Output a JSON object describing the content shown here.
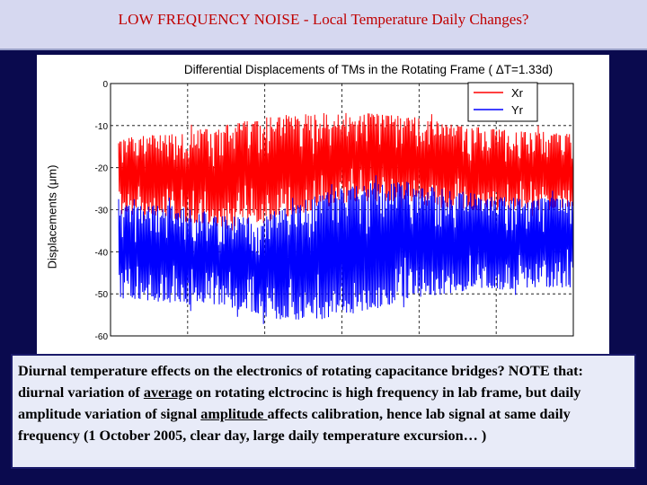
{
  "slide_title": {
    "prefix": "LOW  FREQUENCY  NOISE",
    "separator": " - ",
    "rest": "Local Temperature Daily Changes?"
  },
  "chart_data": {
    "type": "line",
    "title": "Differential Displacements of TMs in the Rotating Frame ( ΔT=1.33d)",
    "xlabel": "",
    "ylabel": "Displacements (μm)",
    "ylim": [
      -60,
      0
    ],
    "yticks": [
      "0",
      "-10",
      "-20",
      "-30",
      "-40",
      "-50",
      "-60"
    ],
    "grid": true,
    "legend_position": "top-right",
    "series": [
      {
        "name": "Xr",
        "color": "#ff0000",
        "envelope": {
          "t": [
            0,
            0.05,
            0.1,
            0.15,
            0.2,
            0.25,
            0.3,
            0.35,
            0.4,
            0.45,
            0.5,
            0.55,
            0.6,
            0.65,
            0.7,
            0.75,
            0.8,
            0.85,
            0.9,
            0.95,
            1.0
          ],
          "upper": [
            -12.5,
            -12.5,
            -12,
            -11.5,
            -10.5,
            -9.5,
            -8.5,
            -7.5,
            -7,
            -7,
            -7,
            -7,
            -7.5,
            -8,
            -9,
            -10,
            -10.5,
            -11,
            -11.5,
            -11.5,
            -12
          ],
          "lower": [
            -31.5,
            -31,
            -32,
            -33,
            -33.5,
            -35,
            -34,
            -32,
            -31,
            -29.5,
            -28.5,
            -28,
            -28,
            -28.5,
            -29.5,
            -30,
            -30.5,
            -30,
            -30,
            -30,
            -29.5
          ]
        }
      },
      {
        "name": "Yr",
        "color": "#0000ff",
        "envelope": {
          "t": [
            0,
            0.05,
            0.1,
            0.15,
            0.2,
            0.25,
            0.3,
            0.35,
            0.4,
            0.45,
            0.5,
            0.55,
            0.6,
            0.65,
            0.7,
            0.75,
            0.8,
            0.85,
            0.9,
            0.95,
            1.0
          ],
          "upper": [
            -29,
            -29,
            -28.5,
            -29,
            -30.5,
            -31.5,
            -32,
            -30,
            -28,
            -26,
            -24.5,
            -23.5,
            -23,
            -23.5,
            -24.5,
            -25.5,
            -26.5,
            -27,
            -27.5,
            -27,
            -27
          ],
          "lower": [
            -51,
            -51.5,
            -52,
            -52.5,
            -53,
            -53.5,
            -55.5,
            -56,
            -56.5,
            -56,
            -55,
            -54,
            -52.5,
            -51,
            -50.5,
            -49.5,
            -49,
            -49,
            -48.5,
            -48.5,
            -48.5
          ]
        }
      }
    ]
  },
  "caption": {
    "part1": "Diurnal temperature effects on the electronics of rotating capacitance bridges? NOTE that: diurnal variation of ",
    "u1": "average",
    "part2": " on rotating elctrocinc is high frequency in lab frame, but daily amplitude variation of signal ",
    "u2": "amplitude ",
    "part3": "affects calibration, hence lab signal at same daily frequency (1 October 2005, clear day, large daily temperature excursion… )"
  }
}
